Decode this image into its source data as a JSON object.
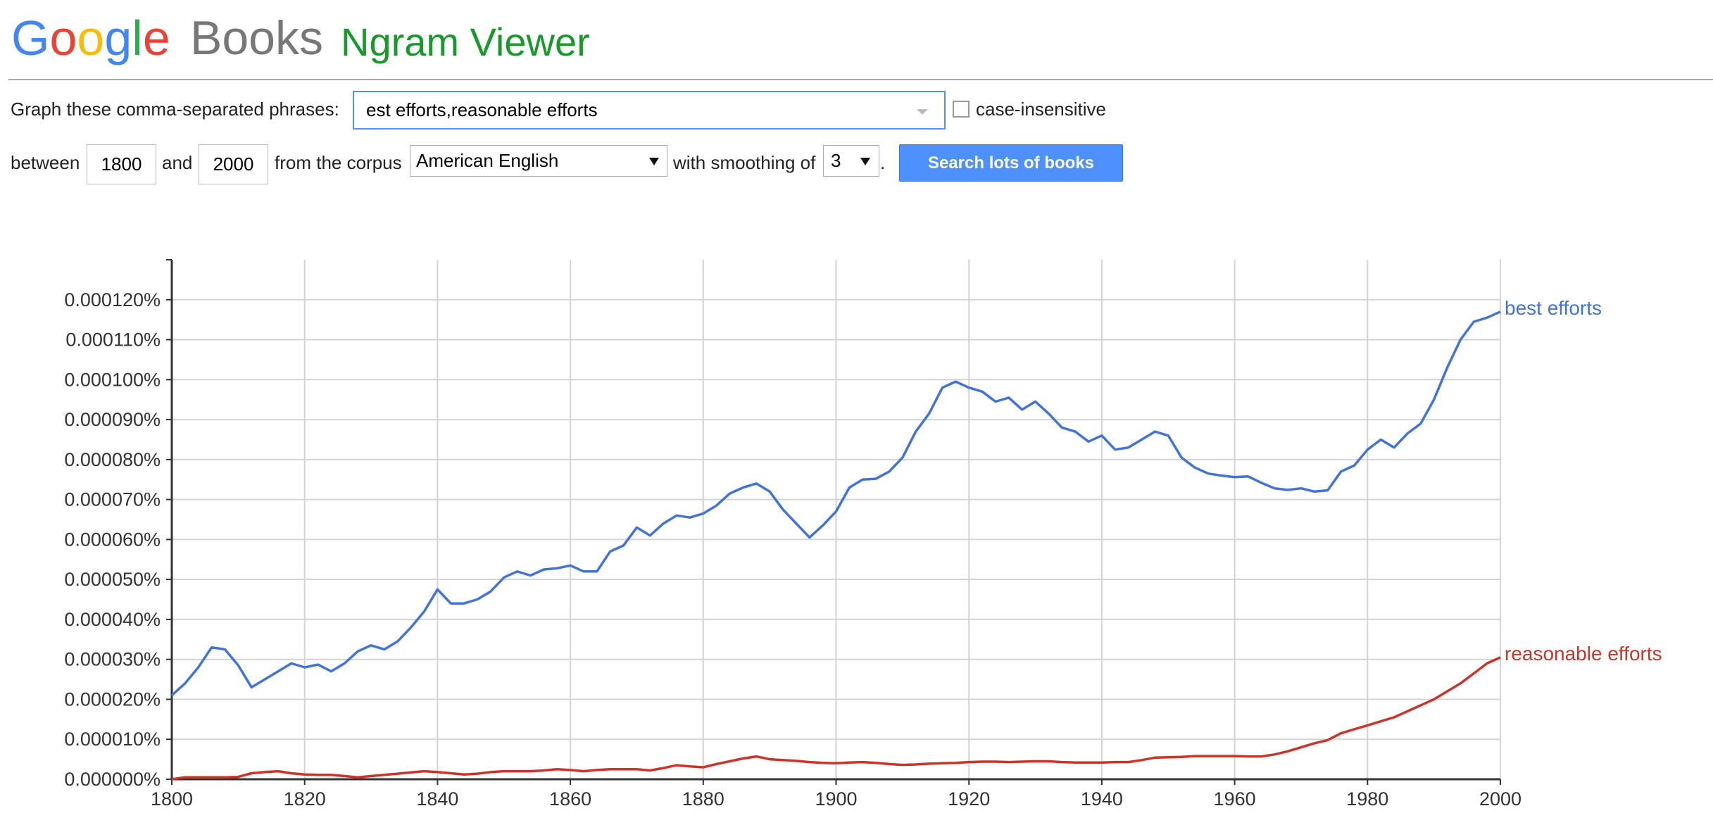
{
  "header": {
    "logo": "Google",
    "product": "Books",
    "title": "Ngram Viewer"
  },
  "form": {
    "phrases_label": "Graph these comma-separated phrases:",
    "phrases": "est efforts,reasonable efforts",
    "case_label": "case-insensitive",
    "between": "between",
    "start": "1800",
    "and": "and",
    "end": "2000",
    "corpus_label": "from the corpus",
    "corpus": "American English",
    "smoothing_label": "with smoothing of",
    "smoothing": "3",
    "period": ".",
    "button": "Search lots of books"
  },
  "chart_data": {
    "type": "line",
    "x": [
      1800,
      1802,
      1804,
      1806,
      1808,
      1810,
      1812,
      1814,
      1816,
      1818,
      1820,
      1822,
      1824,
      1826,
      1828,
      1830,
      1832,
      1834,
      1836,
      1838,
      1840,
      1842,
      1844,
      1846,
      1848,
      1850,
      1852,
      1854,
      1856,
      1858,
      1860,
      1862,
      1864,
      1866,
      1868,
      1870,
      1872,
      1874,
      1876,
      1878,
      1880,
      1882,
      1884,
      1886,
      1888,
      1890,
      1892,
      1894,
      1896,
      1898,
      1900,
      1902,
      1904,
      1906,
      1908,
      1910,
      1912,
      1914,
      1916,
      1918,
      1920,
      1922,
      1924,
      1926,
      1928,
      1930,
      1932,
      1934,
      1936,
      1938,
      1940,
      1942,
      1944,
      1946,
      1948,
      1950,
      1952,
      1954,
      1956,
      1958,
      1960,
      1962,
      1964,
      1966,
      1968,
      1970,
      1972,
      1974,
      1976,
      1978,
      1980,
      1982,
      1984,
      1986,
      1988,
      1990,
      1992,
      1994,
      1996,
      1998,
      2000
    ],
    "series": [
      {
        "name": "best efforts",
        "color": "#4173d8",
        "values": [
          2.1e-05,
          2.4e-05,
          2.8e-05,
          3.3e-05,
          3.25e-05,
          2.85e-05,
          2.3e-05,
          2.5e-05,
          2.7e-05,
          2.9e-05,
          2.8e-05,
          2.87e-05,
          2.7e-05,
          2.9e-05,
          3.2e-05,
          3.35e-05,
          3.25e-05,
          3.45e-05,
          3.8e-05,
          4.2e-05,
          4.75e-05,
          4.4e-05,
          4.4e-05,
          4.5e-05,
          4.7e-05,
          5.05e-05,
          5.2e-05,
          5.1e-05,
          5.25e-05,
          5.28e-05,
          5.35e-05,
          5.2e-05,
          5.2e-05,
          5.7e-05,
          5.85e-05,
          6.3e-05,
          6.1e-05,
          6.4e-05,
          6.6e-05,
          6.55e-05,
          6.65e-05,
          6.85e-05,
          7.15e-05,
          7.3e-05,
          7.4e-05,
          7.2e-05,
          6.75e-05,
          6.4e-05,
          6.05e-05,
          6.35e-05,
          6.7e-05,
          7.3e-05,
          7.5e-05,
          7.52e-05,
          7.7e-05,
          8.05e-05,
          8.7e-05,
          9.15e-05,
          9.8e-05,
          9.95e-05,
          9.8e-05,
          9.7e-05,
          9.45e-05,
          9.55e-05,
          9.25e-05,
          9.45e-05,
          9.15e-05,
          8.8e-05,
          8.7e-05,
          8.45e-05,
          8.6e-05,
          8.25e-05,
          8.3e-05,
          8.5e-05,
          8.7e-05,
          8.6e-05,
          8.05e-05,
          7.8e-05,
          7.65e-05,
          7.6e-05,
          7.56e-05,
          7.58e-05,
          7.42e-05,
          7.28e-05,
          7.24e-05,
          7.28e-05,
          7.2e-05,
          7.23e-05,
          7.7e-05,
          7.85e-05,
          8.25e-05,
          8.5e-05,
          8.3e-05,
          8.65e-05,
          8.9e-05,
          9.5e-05,
          0.000103,
          0.00011,
          0.0001145,
          0.0001155,
          0.000117
        ]
      },
      {
        "name": "reasonable efforts",
        "color": "#cc3329",
        "values": [
          0,
          5e-07,
          5e-07,
          5e-07,
          5e-07,
          6e-07,
          1.5e-06,
          1.8e-06,
          2e-06,
          1.5e-06,
          1.2e-06,
          1.1e-06,
          1.1e-06,
          8e-07,
          5e-07,
          8e-07,
          1.1e-06,
          1.4e-06,
          1.7e-06,
          2e-06,
          1.8e-06,
          1.5e-06,
          1.2e-06,
          1.4e-06,
          1.8e-06,
          2e-06,
          2e-06,
          2e-06,
          2.2e-06,
          2.5e-06,
          2.3e-06,
          2e-06,
          2.3e-06,
          2.5e-06,
          2.5e-06,
          2.5e-06,
          2.2e-06,
          2.8e-06,
          3.5e-06,
          3.2e-06,
          3e-06,
          3.8e-06,
          4.5e-06,
          5.2e-06,
          5.7e-06,
          5e-06,
          4.8e-06,
          4.6e-06,
          4.3e-06,
          4.1e-06,
          4e-06,
          4.2e-06,
          4.3e-06,
          4.1e-06,
          3.8e-06,
          3.6e-06,
          3.7e-06,
          3.9e-06,
          4e-06,
          4.1e-06,
          4.3e-06,
          4.4e-06,
          4.4e-06,
          4.3e-06,
          4.4e-06,
          4.5e-06,
          4.5e-06,
          4.3e-06,
          4.2e-06,
          4.2e-06,
          4.2e-06,
          4.3e-06,
          4.3e-06,
          4.8e-06,
          5.4e-06,
          5.5e-06,
          5.6e-06,
          5.8e-06,
          5.8e-06,
          5.8e-06,
          5.8e-06,
          5.7e-06,
          5.7e-06,
          6.2e-06,
          7e-06,
          8e-06,
          9e-06,
          9.8e-06,
          1.15e-05,
          1.25e-05,
          1.35e-05,
          1.45e-05,
          1.55e-05,
          1.7e-05,
          1.85e-05,
          2e-05,
          2.2e-05,
          2.4e-05,
          2.65e-05,
          2.9e-05,
          3.05e-05
        ]
      }
    ],
    "xlim": [
      1800,
      2000
    ],
    "xticks": [
      1800,
      1820,
      1840,
      1860,
      1880,
      1900,
      1920,
      1940,
      1960,
      1980,
      2000
    ],
    "ylim": [
      0,
      0.00013
    ],
    "yticks": [
      {
        "value": 0,
        "label": "0.000000%"
      },
      {
        "value": 1e-05,
        "label": "0.000010%"
      },
      {
        "value": 2e-05,
        "label": "0.000020%"
      },
      {
        "value": 3e-05,
        "label": "0.000030%"
      },
      {
        "value": 4e-05,
        "label": "0.000040%"
      },
      {
        "value": 5e-05,
        "label": "0.000050%"
      },
      {
        "value": 6e-05,
        "label": "0.000060%"
      },
      {
        "value": 7e-05,
        "label": "0.000070%"
      },
      {
        "value": 8e-05,
        "label": "0.000080%"
      },
      {
        "value": 9e-05,
        "label": "0.000090%"
      },
      {
        "value": 0.0001,
        "label": "0.000100%"
      },
      {
        "value": 0.00011,
        "label": "0.000110%"
      },
      {
        "value": 0.00012,
        "label": "0.000120%"
      }
    ],
    "grid": true,
    "legend": "line-end"
  }
}
